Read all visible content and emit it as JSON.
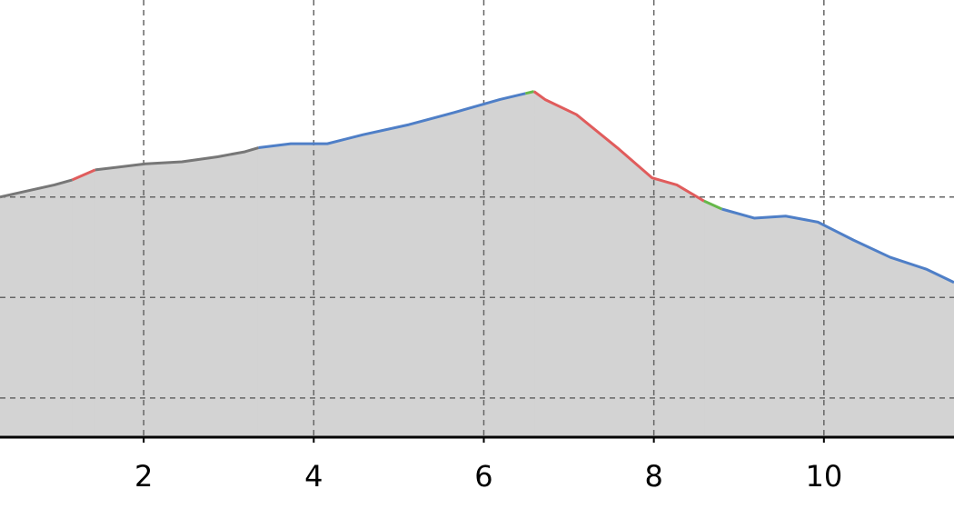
{
  "chart_data": {
    "type": "area-line",
    "xlim": [
      0.31,
      11.53
    ],
    "ylim": [
      0.61,
      4.96
    ],
    "xticks": [
      2,
      4,
      6,
      8,
      10
    ],
    "ygrid": [
      1,
      2,
      3
    ],
    "grid": true,
    "fill_color": "#d3d3d3",
    "series": [
      {
        "color": "#777777",
        "x": [
          0.31,
          0.63,
          0.95,
          1.16
        ],
        "values": [
          3.0,
          3.06,
          3.12,
          3.17
        ]
      },
      {
        "color": "#e05c5c",
        "x": [
          1.16,
          1.43
        ],
        "values": [
          3.17,
          3.27
        ]
      },
      {
        "color": "#777777",
        "x": [
          1.43,
          2.02,
          2.45,
          2.87,
          3.19,
          3.35
        ],
        "values": [
          3.27,
          3.33,
          3.35,
          3.4,
          3.45,
          3.49
        ]
      },
      {
        "color": "#4f7fc7",
        "x": [
          3.35,
          3.73,
          4.16,
          4.58,
          5.12,
          5.65,
          6.19,
          6.49
        ],
        "values": [
          3.49,
          3.53,
          3.53,
          3.62,
          3.72,
          3.84,
          3.97,
          4.03
        ]
      },
      {
        "color": "#66b84a",
        "x": [
          6.49,
          6.59
        ],
        "values": [
          4.03,
          4.05
        ]
      },
      {
        "color": "#e05c5c",
        "x": [
          6.59,
          6.72,
          7.09,
          7.57,
          7.98,
          8.27,
          8.59
        ],
        "values": [
          4.05,
          3.97,
          3.82,
          3.49,
          3.19,
          3.12,
          2.96
        ]
      },
      {
        "color": "#66b84a",
        "x": [
          8.59,
          8.8
        ],
        "values": [
          2.96,
          2.88
        ]
      },
      {
        "color": "#4f7fc7",
        "x": [
          8.8,
          9.18,
          9.55,
          9.93,
          10.35,
          10.78,
          11.21,
          11.53
        ],
        "values": [
          2.88,
          2.79,
          2.81,
          2.75,
          2.57,
          2.4,
          2.28,
          2.15
        ]
      }
    ]
  }
}
